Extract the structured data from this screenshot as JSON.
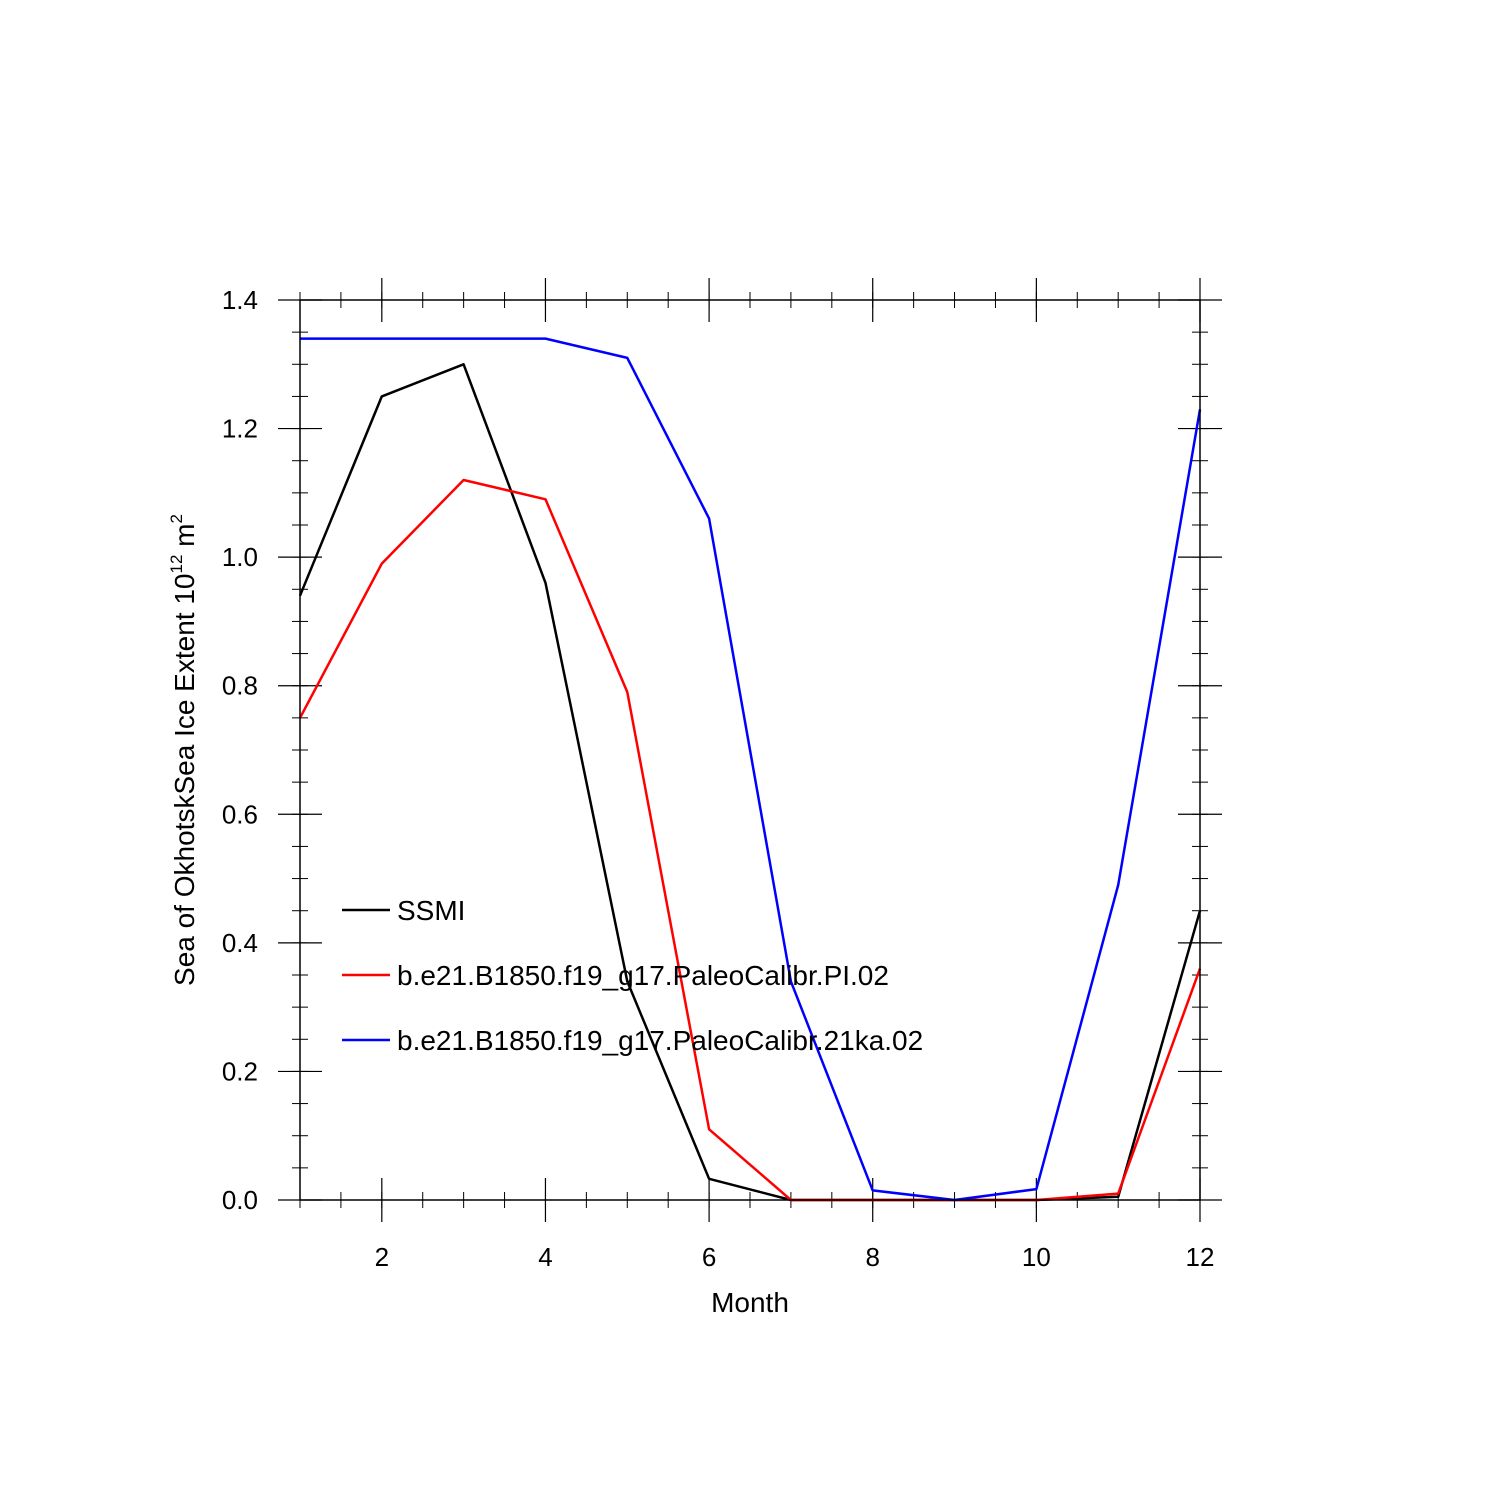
{
  "chart_data": {
    "type": "line",
    "xlabel": "Month",
    "ylabel": "Sea of OkhotskSea Ice Extent 10",
    "ylabel_exponent": "12",
    "ylabel_unit": " m",
    "ylabel_unit_exponent": "2",
    "xlim": [
      1,
      12
    ],
    "ylim": [
      0.0,
      1.4
    ],
    "x_ticks": [
      2,
      4,
      6,
      8,
      10,
      12
    ],
    "y_ticks": [
      "0.0",
      "0.2",
      "0.4",
      "0.6",
      "0.8",
      "1.0",
      "1.2",
      "1.4"
    ],
    "grid": false,
    "legend_position": "lower-left inside",
    "x": [
      1,
      2,
      3,
      4,
      5,
      6,
      7,
      8,
      9,
      10,
      11,
      12
    ],
    "series": [
      {
        "name": "SSMI",
        "color": "#000000",
        "values": [
          0.94,
          1.25,
          1.3,
          0.96,
          0.34,
          0.033,
          0.0,
          0.0,
          0.0,
          0.0,
          0.005,
          0.45
        ]
      },
      {
        "name": "b.e21.B1850.f19_g17.PaleoCalibr.PI.02",
        "color": "#ff0000",
        "values": [
          0.75,
          0.99,
          1.12,
          1.09,
          0.79,
          0.11,
          0.0,
          0.0,
          0.0,
          0.0,
          0.01,
          0.36
        ]
      },
      {
        "name": "b.e21.B1850.f19_g17.PaleoCalibr.21ka.02",
        "color": "#0000ff",
        "values": [
          1.34,
          1.34,
          1.34,
          1.34,
          1.31,
          1.06,
          0.34,
          0.015,
          0.0,
          0.017,
          0.49,
          1.23
        ]
      }
    ]
  }
}
